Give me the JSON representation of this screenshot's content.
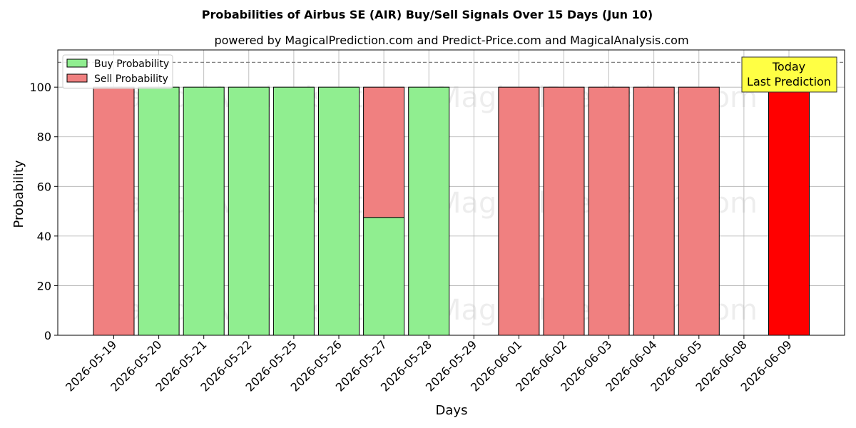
{
  "chart_data": {
    "type": "bar",
    "title": "Probabilities of Airbus SE (AIR) Buy/Sell Signals Over 15 Days (Jun 10)",
    "subtitle": "powered by MagicalPrediction.com and Predict-Price.com and MagicalAnalysis.com",
    "xlabel": "Days",
    "ylabel": "Probability",
    "ylim": [
      0,
      115
    ],
    "yticks": [
      0,
      20,
      40,
      60,
      80,
      100
    ],
    "grid": true,
    "reference_line": 110,
    "legend_position": "top-left",
    "categories": [
      "2026-05-19",
      "2026-05-20",
      "2026-05-21",
      "2026-05-22",
      "2026-05-25",
      "2026-05-26",
      "2026-05-27",
      "2026-05-28",
      "2026-05-29",
      "2026-06-01",
      "2026-06-02",
      "2026-06-03",
      "2026-06-04",
      "2026-06-05",
      "2026-06-08",
      "2026-06-09"
    ],
    "series": [
      {
        "name": "Buy Probability",
        "color": "#90ee90",
        "values": [
          0,
          100,
          100,
          100,
          100,
          100,
          47.5,
          100,
          0,
          0,
          0,
          0,
          0,
          0,
          0,
          0
        ]
      },
      {
        "name": "Sell Probability",
        "color": "#f08080",
        "values": [
          100,
          0,
          0,
          0,
          0,
          0,
          52.5,
          0,
          0,
          100,
          100,
          100,
          100,
          100,
          0,
          100
        ]
      }
    ],
    "highlight": {
      "category": "2026-06-09",
      "color": "#ff0000"
    },
    "annotation": {
      "line1": "Today",
      "line2": "Last Prediction",
      "background": "#ffff44"
    },
    "watermarks": [
      "MagicalAnalysis.com",
      "MagicalPrediction.com"
    ]
  }
}
